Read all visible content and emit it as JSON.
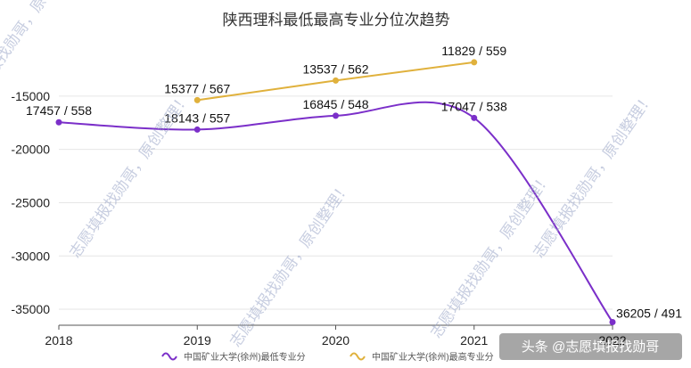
{
  "chart_data": {
    "type": "line",
    "title": "陕西理科最低最高专业分位次趋势",
    "x": [
      "2018",
      "2019",
      "2020",
      "2021",
      "2022"
    ],
    "ylim": [
      -36500,
      -11000
    ],
    "yticks": [
      -15000,
      -20000,
      -25000,
      -30000,
      -35000
    ],
    "grid": true,
    "legend_position": "bottom",
    "series": [
      {
        "name": "中国矿业大学(徐州)最低专业分",
        "color": "#7b2fc9",
        "values": [
          -17457,
          -18143,
          -16845,
          -17047,
          -36205
        ],
        "labels": [
          "17457 / 558",
          "18143 / 557",
          "16845 / 548",
          "17047 / 538",
          "36205 / 491"
        ]
      },
      {
        "name": "中国矿业大学(徐州)最高专业分",
        "color": "#e0b13c",
        "values": [
          null,
          -15377,
          -13537,
          -11829,
          null
        ],
        "labels": [
          "",
          "15377 / 567",
          "13537 / 562",
          "11829 / 559",
          ""
        ]
      }
    ]
  },
  "watermarks": [
    "志愿填报找勋哥，原创整理！",
    "志愿填报找勋哥，原创整理！",
    "志愿填报找勋哥，原创整理！",
    "志愿填报找勋哥，原创整理！",
    "志愿填报找勋哥，原创整理！"
  ],
  "credit": "头条 @志愿填报找勋哥"
}
